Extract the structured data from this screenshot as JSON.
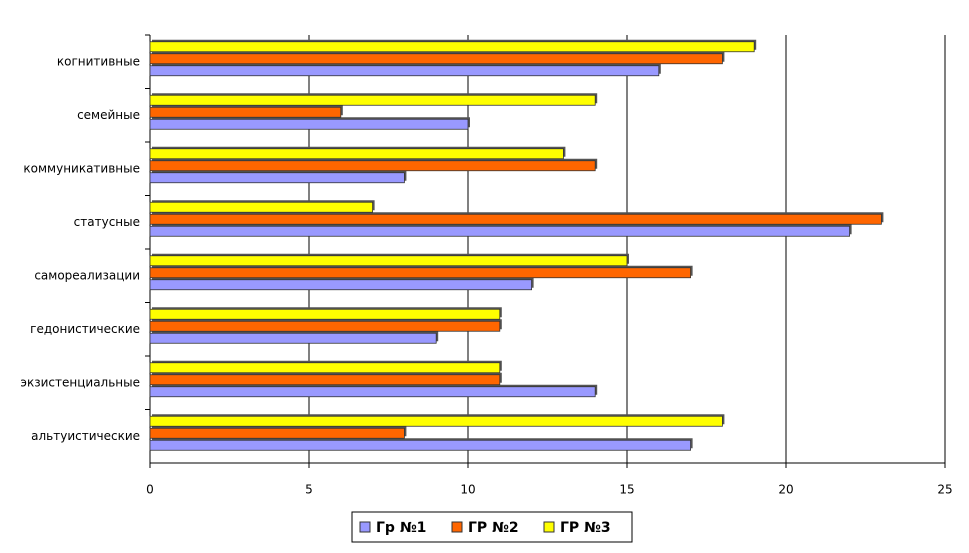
{
  "chart_data": {
    "type": "hbar",
    "categories": [
      "когнитивные",
      "семейные",
      "коммуникативные",
      "статусные",
      "самореализации",
      "гедонистические",
      "экзистенциальные",
      "альтуистические"
    ],
    "series": [
      {
        "name": "Гр №1",
        "color": "#9999ff",
        "values": [
          16,
          10,
          8,
          22,
          12,
          9,
          14,
          17
        ]
      },
      {
        "name": "ГР №2",
        "color": "#ff6600",
        "values": [
          18,
          6,
          14,
          23,
          17,
          11,
          11,
          8
        ]
      },
      {
        "name": "ГР №3",
        "color": "#ffff00",
        "values": [
          19,
          14,
          13,
          7,
          15,
          11,
          11,
          18
        ]
      }
    ],
    "xlim": [
      0,
      25
    ],
    "xticks": [
      0,
      5,
      10,
      15,
      20,
      25
    ],
    "grid": true,
    "legend": "bottom"
  }
}
